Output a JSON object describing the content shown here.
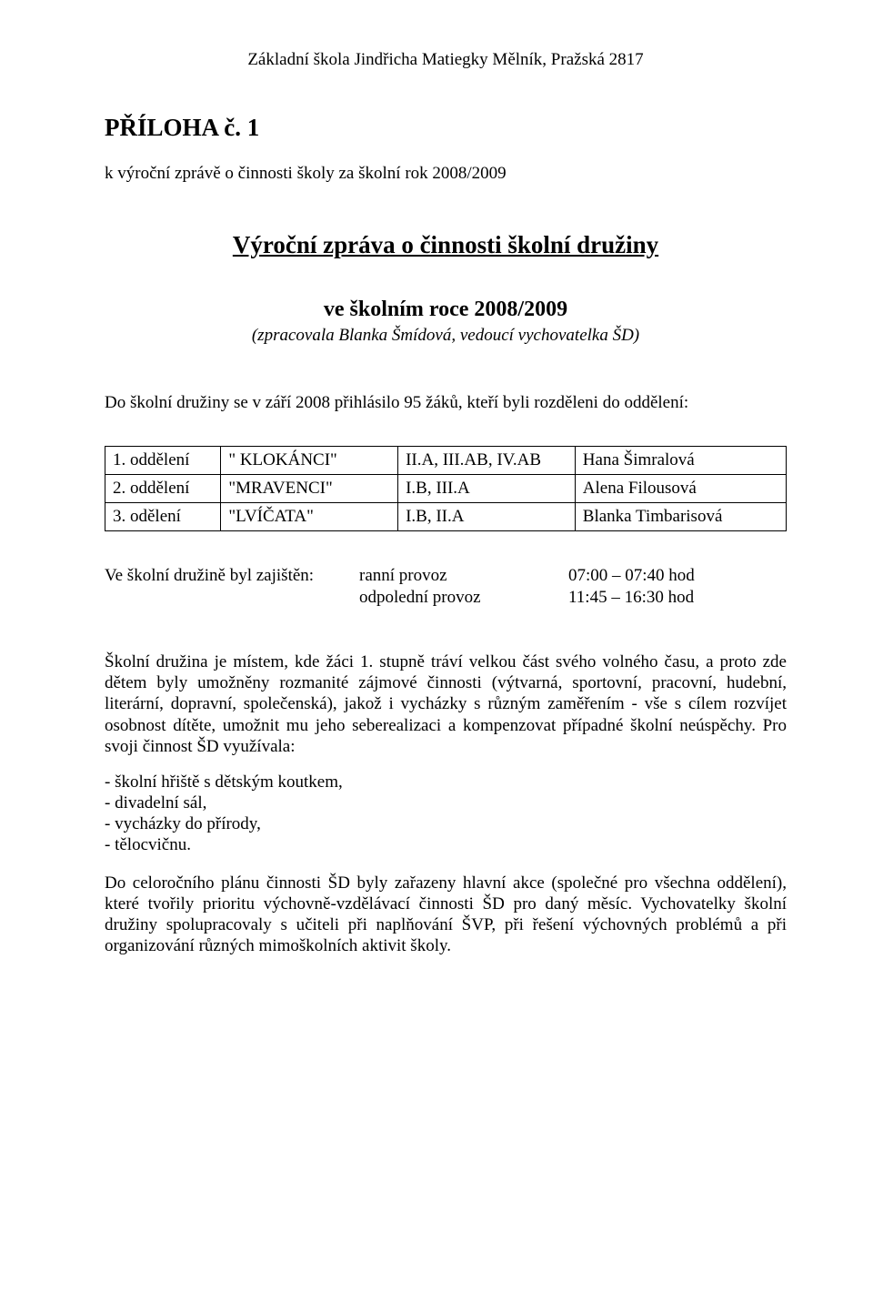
{
  "header": "Základní škola Jindřicha Matiegky Mělník, Pražská 2817",
  "priloha": "PŘÍLOHA č. 1",
  "sub_header": "k výroční zprávě o činnosti školy za školní rok 2008/2009",
  "main_title": "Výroční zpráva o činnosti školní družiny",
  "year_line": "ve školním roce 2008/2009",
  "author_line": "(zpracovala Blanka Šmídová, vedoucí vychovatelka ŠD)",
  "intro": "Do školní družiny se v září 2008 přihlásilo  95 žáků, kteří byli rozděleni do oddělení:",
  "dept_table": {
    "rows": [
      [
        "1. oddělení",
        "\" KLOKÁNCI\"",
        "II.A,  III.AB,  IV.AB",
        "Hana Šimralová"
      ],
      [
        "2. oddělení",
        "\"MRAVENCI\"",
        "I.B,  III.A",
        "Alena Filousová"
      ],
      [
        "3. odělení",
        "\"LVÍČATA\"",
        "I.B,  II.A",
        "Blanka Timbarisová"
      ]
    ]
  },
  "provoz": {
    "label": "Ve školní družině byl zajištěn:",
    "rows": [
      {
        "type": "ranní provoz",
        "time": "07:00 – 07:40 hod"
      },
      {
        "type": "odpolední provoz",
        "time": "11:45 – 16:30 hod"
      }
    ]
  },
  "para1": "Školní družina je místem, kde žáci 1. stupně tráví velkou část svého volného času, a proto zde dětem byly umožněny rozmanité zájmové činnosti (výtvarná, sportovní, pracovní, hudební, literární, dopravní, společenská), jakož i vycházky s různým zaměřením - vše s cílem rozvíjet osobnost dítěte, umožnit mu jeho seberealizaci a kompenzovat případné školní  neúspěchy. Pro svoji činnost ŠD využívala:",
  "facilities": [
    "- školní hřiště s dětským koutkem,",
    "- divadelní sál,",
    "- vycházky do přírody,",
    "- tělocvičnu."
  ],
  "para2": "Do celoročního plánu činnosti ŠD byly zařazeny hlavní akce (společné pro všechna  oddělení), které tvořily prioritu výchovně-vzdělávací činnosti ŠD pro daný měsíc. Vychovatelky školní družiny spolupracovaly s učiteli při naplňování ŠVP, při řešení výchovných problémů a při organizování různých mimoškolních aktivit školy."
}
